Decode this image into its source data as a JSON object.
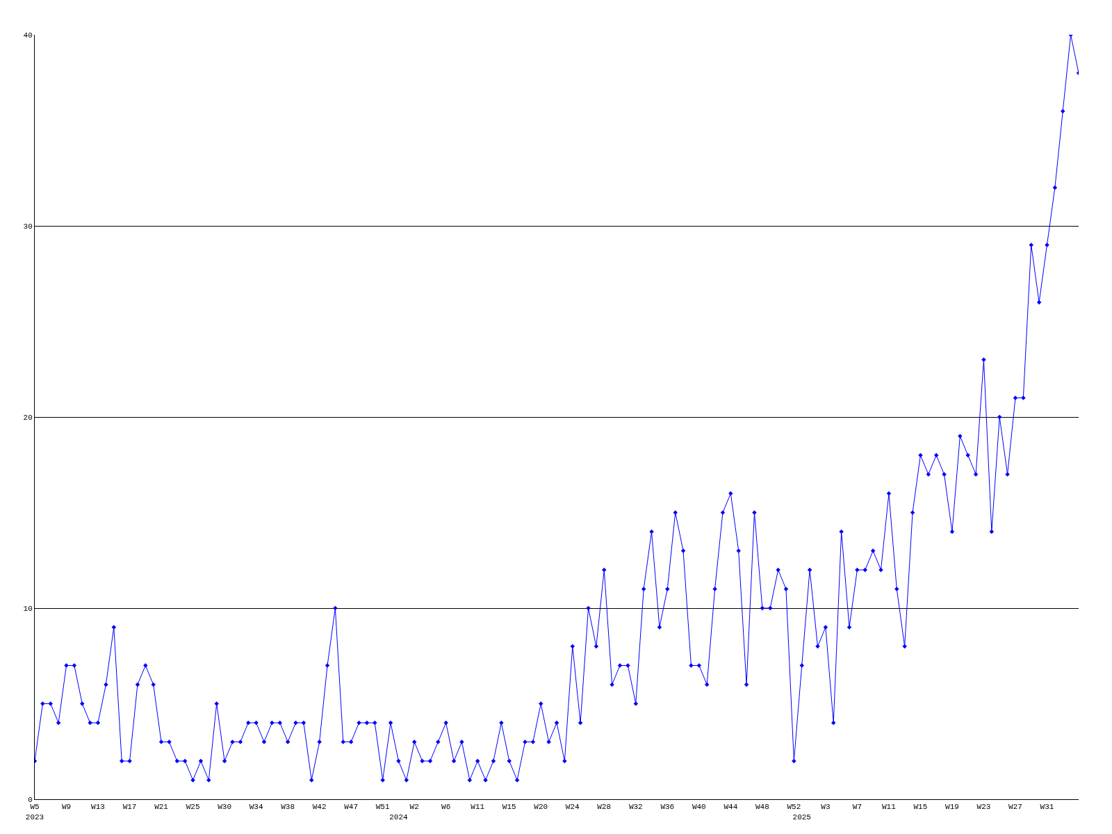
{
  "chart_data": {
    "type": "line",
    "categories": [
      "W5\n2023",
      null,
      null,
      null,
      "W9",
      null,
      null,
      null,
      "W13",
      null,
      null,
      null,
      "W17",
      null,
      null,
      null,
      "W21",
      null,
      null,
      null,
      "W25",
      null,
      null,
      null,
      "W30",
      null,
      null,
      null,
      "W34",
      null,
      null,
      null,
      "W38",
      null,
      null,
      null,
      "W42",
      null,
      null,
      null,
      "W47",
      null,
      null,
      null,
      "W51",
      null,
      "\n2024",
      null,
      "W2",
      null,
      null,
      null,
      "W6",
      null,
      null,
      null,
      "W11",
      null,
      null,
      null,
      "W15",
      null,
      null,
      null,
      "W20",
      null,
      null,
      null,
      "W24",
      null,
      null,
      null,
      "W28",
      null,
      null,
      null,
      "W32",
      null,
      null,
      null,
      "W36",
      null,
      null,
      null,
      "W40",
      null,
      null,
      null,
      "W44",
      null,
      null,
      null,
      "W48",
      null,
      null,
      null,
      "W52",
      "\n2025",
      null,
      null,
      "W3",
      null,
      null,
      null,
      "W7",
      null,
      null,
      null,
      "W11",
      null,
      null,
      null,
      "W15",
      null,
      null,
      null,
      "W19",
      null,
      null,
      null,
      "W23",
      null,
      null,
      null,
      "W27",
      null,
      null,
      null,
      "W31",
      null,
      null,
      null,
      null
    ],
    "series": [
      {
        "color": "#0000ff",
        "values": [
          2,
          5,
          5,
          4,
          7,
          7,
          5,
          4,
          4,
          6,
          9,
          2,
          2,
          6,
          7,
          6,
          3,
          3,
          2,
          2,
          1,
          2,
          1,
          5,
          2,
          3,
          3,
          4,
          4,
          3,
          4,
          4,
          3,
          4,
          4,
          1,
          3,
          7,
          10,
          3,
          3,
          4,
          4,
          4,
          1,
          4,
          2,
          1,
          3,
          2,
          2,
          3,
          4,
          2,
          3,
          1,
          2,
          1,
          2,
          4,
          2,
          1,
          3,
          3,
          5,
          3,
          4,
          2,
          8,
          4,
          10,
          8,
          12,
          6,
          7,
          7,
          5,
          11,
          14,
          9,
          11,
          15,
          13,
          7,
          7,
          6,
          11,
          15,
          16,
          13,
          6,
          15,
          10,
          10,
          12,
          11,
          2,
          7,
          12,
          8,
          9,
          4,
          14,
          9,
          12,
          12,
          13,
          12,
          16,
          11,
          8,
          15,
          18,
          17,
          18,
          17,
          14,
          19,
          18,
          17,
          23,
          14,
          20,
          17,
          21,
          21,
          29,
          26,
          29,
          32,
          36,
          40,
          38
        ]
      }
    ],
    "ylim": [
      0,
      40
    ],
    "yticks": [
      0,
      10,
      20,
      30,
      40
    ],
    "grid": "y",
    "marker": "diamond",
    "line_style": "solid",
    "legend": false
  }
}
